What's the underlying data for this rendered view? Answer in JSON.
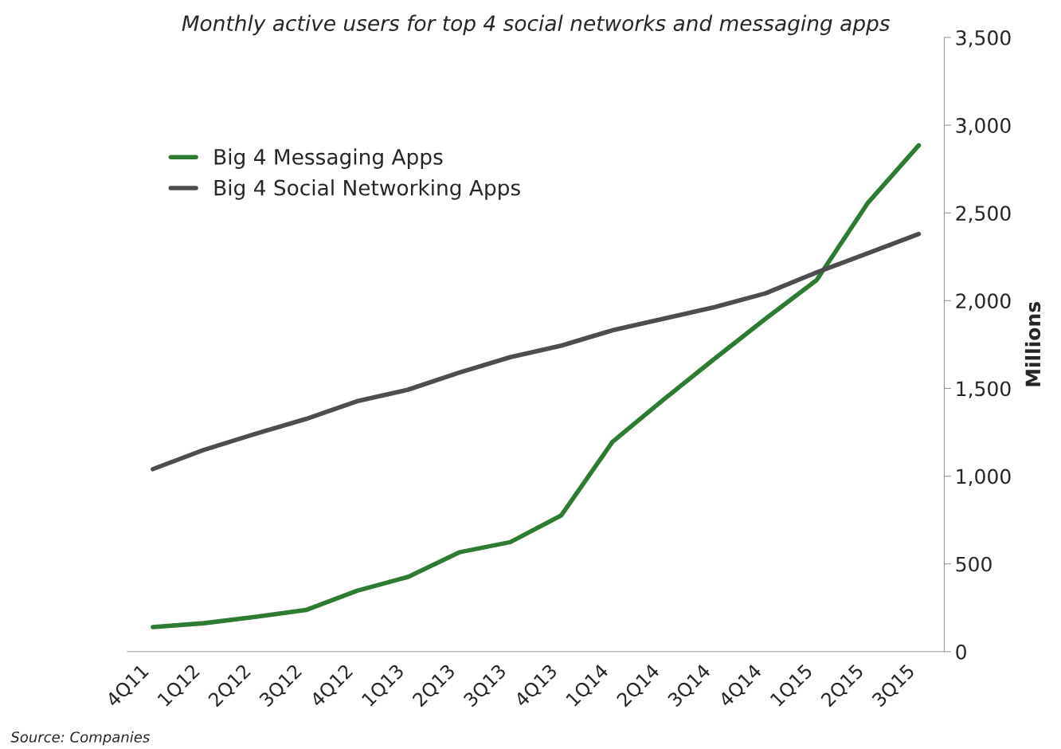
{
  "chart_data": {
    "type": "line",
    "subtitle": "Monthly active users for top 4 social networks and messaging apps",
    "y2label": "Millions",
    "categories": [
      "4Q11",
      "1Q12",
      "2Q12",
      "3Q12",
      "4Q12",
      "1Q13",
      "2Q13",
      "3Q13",
      "4Q13",
      "1Q14",
      "2Q14",
      "3Q14",
      "4Q14",
      "1Q15",
      "2Q15",
      "3Q15"
    ],
    "series": [
      {
        "name": "Big 4 Messaging Apps",
        "color": "#2e7b32",
        "axis": "y2",
        "values": [
          140,
          162,
          198,
          237,
          347,
          426,
          566,
          624,
          777,
          1195,
          1436,
          1669,
          1897,
          2117,
          2556,
          2885
        ]
      },
      {
        "name": "Big 4 Social Networking Apps",
        "color": "#4d4d4f",
        "axis": "y2",
        "values": [
          1040,
          1150,
          1240,
          1326,
          1427,
          1493,
          1590,
          1678,
          1744,
          1831,
          1897,
          1963,
          2042,
          2161,
          2270,
          2380
        ]
      }
    ],
    "y2lim": [
      0,
      3500
    ],
    "y2ticks": [
      {
        "value": 0,
        "label": "0"
      },
      {
        "value": 500,
        "label": "500"
      },
      {
        "value": 1000,
        "label": "1,000"
      },
      {
        "value": 1500,
        "label": "1,500"
      },
      {
        "value": 2000,
        "label": "2,000"
      },
      {
        "value": 2500,
        "label": "2,500"
      },
      {
        "value": 3000,
        "label": "3,000"
      },
      {
        "value": 3500,
        "label": "3,500"
      }
    ],
    "grid": false,
    "legend": "top left",
    "line_style": "solid",
    "annotations": [
      "Source: Companies"
    ]
  }
}
